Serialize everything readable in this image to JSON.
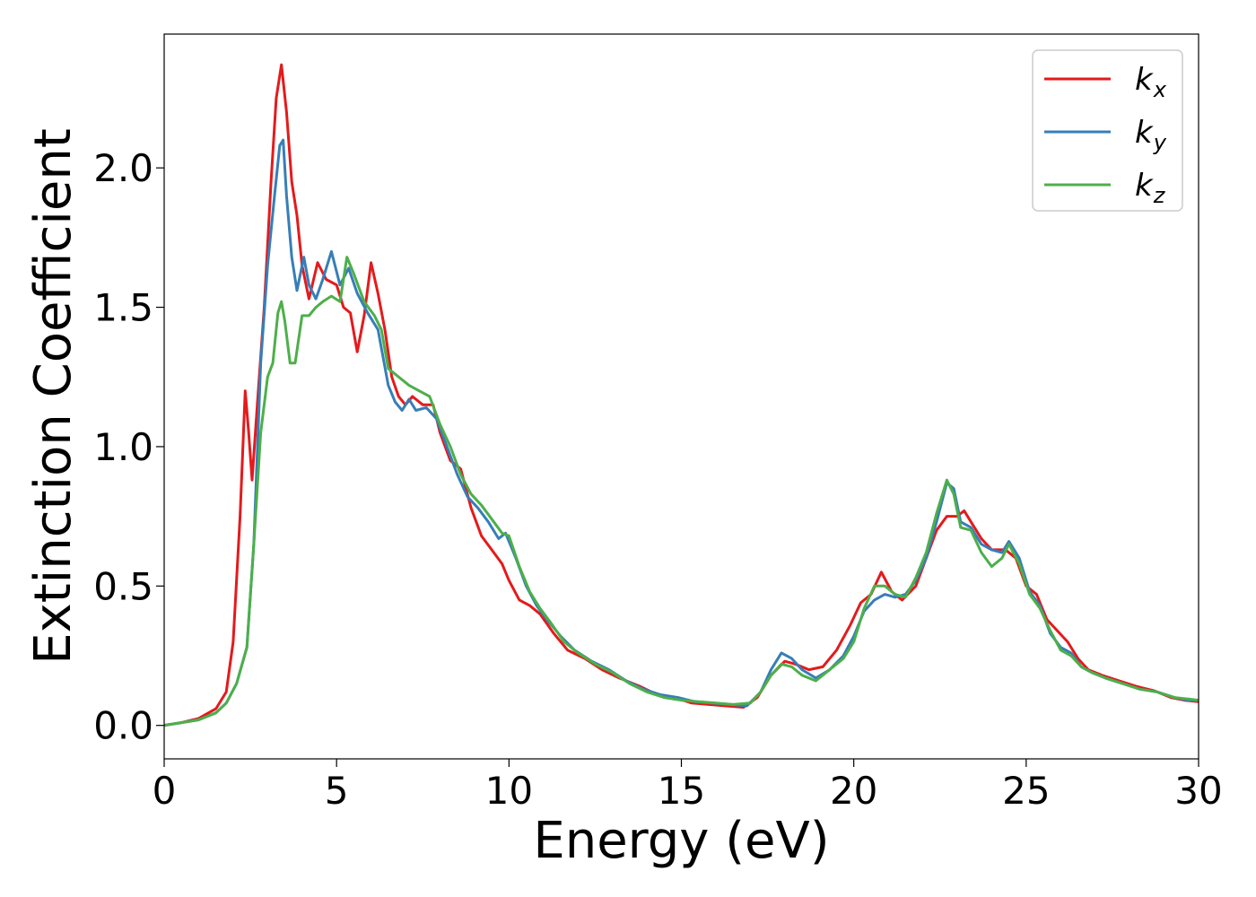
{
  "chart_data": {
    "type": "line",
    "title": "",
    "xlabel": "Energy (eV)",
    "ylabel": "Extinction Coefficient",
    "xlim": [
      0,
      30
    ],
    "ylim": [
      -0.12,
      2.48
    ],
    "xticks": [
      0,
      5,
      10,
      15,
      20,
      25,
      30
    ],
    "xtick_labels": [
      "0",
      "5",
      "10",
      "15",
      "20",
      "25",
      "30"
    ],
    "yticks": [
      0.0,
      0.5,
      1.0,
      1.5,
      2.0
    ],
    "ytick_labels": [
      "0.0",
      "0.5",
      "1.0",
      "1.5",
      "2.0"
    ],
    "grid": false,
    "legend_position": "top-right",
    "series": [
      {
        "name": "k",
        "subscript": "x",
        "color": "#e41a1c",
        "points": [
          [
            0,
            0
          ],
          [
            0.5,
            0.01
          ],
          [
            1,
            0.025
          ],
          [
            1.5,
            0.06
          ],
          [
            1.8,
            0.12
          ],
          [
            2.0,
            0.3
          ],
          [
            2.2,
            0.75
          ],
          [
            2.35,
            1.2
          ],
          [
            2.45,
            1.05
          ],
          [
            2.55,
            0.88
          ],
          [
            2.7,
            1.15
          ],
          [
            2.9,
            1.5
          ],
          [
            3.1,
            1.95
          ],
          [
            3.25,
            2.25
          ],
          [
            3.4,
            2.37
          ],
          [
            3.55,
            2.2
          ],
          [
            3.7,
            1.95
          ],
          [
            3.85,
            1.83
          ],
          [
            4.0,
            1.65
          ],
          [
            4.2,
            1.53
          ],
          [
            4.45,
            1.66
          ],
          [
            4.7,
            1.6
          ],
          [
            5.0,
            1.58
          ],
          [
            5.2,
            1.5
          ],
          [
            5.4,
            1.48
          ],
          [
            5.6,
            1.34
          ],
          [
            5.8,
            1.47
          ],
          [
            6.0,
            1.66
          ],
          [
            6.2,
            1.55
          ],
          [
            6.4,
            1.42
          ],
          [
            6.6,
            1.25
          ],
          [
            6.8,
            1.18
          ],
          [
            7.0,
            1.15
          ],
          [
            7.2,
            1.18
          ],
          [
            7.5,
            1.15
          ],
          [
            7.8,
            1.15
          ],
          [
            8.0,
            1.05
          ],
          [
            8.3,
            0.95
          ],
          [
            8.6,
            0.92
          ],
          [
            8.9,
            0.78
          ],
          [
            9.2,
            0.68
          ],
          [
            9.5,
            0.63
          ],
          [
            9.8,
            0.58
          ],
          [
            10.0,
            0.52
          ],
          [
            10.3,
            0.45
          ],
          [
            10.6,
            0.43
          ],
          [
            10.9,
            0.4
          ],
          [
            11.3,
            0.33
          ],
          [
            11.7,
            0.27
          ],
          [
            12.2,
            0.24
          ],
          [
            12.7,
            0.2
          ],
          [
            13.2,
            0.17
          ],
          [
            13.8,
            0.14
          ],
          [
            14.3,
            0.11
          ],
          [
            14.8,
            0.1
          ],
          [
            15.3,
            0.08
          ],
          [
            15.8,
            0.075
          ],
          [
            16.3,
            0.07
          ],
          [
            16.8,
            0.065
          ],
          [
            17.2,
            0.1
          ],
          [
            17.6,
            0.18
          ],
          [
            18.0,
            0.23
          ],
          [
            18.3,
            0.22
          ],
          [
            18.7,
            0.2
          ],
          [
            19.1,
            0.21
          ],
          [
            19.5,
            0.27
          ],
          [
            19.9,
            0.36
          ],
          [
            20.2,
            0.44
          ],
          [
            20.5,
            0.47
          ],
          [
            20.8,
            0.55
          ],
          [
            21.1,
            0.48
          ],
          [
            21.4,
            0.45
          ],
          [
            21.8,
            0.5
          ],
          [
            22.1,
            0.6
          ],
          [
            22.4,
            0.7
          ],
          [
            22.7,
            0.75
          ],
          [
            23.0,
            0.75
          ],
          [
            23.2,
            0.77
          ],
          [
            23.4,
            0.73
          ],
          [
            23.7,
            0.67
          ],
          [
            24.0,
            0.63
          ],
          [
            24.4,
            0.63
          ],
          [
            24.7,
            0.6
          ],
          [
            25.0,
            0.5
          ],
          [
            25.3,
            0.47
          ],
          [
            25.6,
            0.38
          ],
          [
            25.9,
            0.34
          ],
          [
            26.2,
            0.3
          ],
          [
            26.5,
            0.24
          ],
          [
            26.8,
            0.2
          ],
          [
            27.2,
            0.18
          ],
          [
            27.7,
            0.16
          ],
          [
            28.2,
            0.14
          ],
          [
            28.7,
            0.125
          ],
          [
            29.2,
            0.1
          ],
          [
            29.6,
            0.09
          ],
          [
            30,
            0.085
          ]
        ]
      },
      {
        "name": "k",
        "subscript": "y",
        "color": "#377eb8",
        "points": [
          [
            0,
            0
          ],
          [
            0.5,
            0.01
          ],
          [
            1,
            0.02
          ],
          [
            1.5,
            0.045
          ],
          [
            1.8,
            0.08
          ],
          [
            2.1,
            0.15
          ],
          [
            2.4,
            0.28
          ],
          [
            2.6,
            0.65
          ],
          [
            2.8,
            1.3
          ],
          [
            3.0,
            1.65
          ],
          [
            3.2,
            1.9
          ],
          [
            3.35,
            2.08
          ],
          [
            3.45,
            2.1
          ],
          [
            3.55,
            1.9
          ],
          [
            3.7,
            1.68
          ],
          [
            3.85,
            1.56
          ],
          [
            4.05,
            1.68
          ],
          [
            4.2,
            1.58
          ],
          [
            4.4,
            1.53
          ],
          [
            4.6,
            1.6
          ],
          [
            4.85,
            1.7
          ],
          [
            5.1,
            1.58
          ],
          [
            5.35,
            1.64
          ],
          [
            5.6,
            1.55
          ],
          [
            5.9,
            1.48
          ],
          [
            6.2,
            1.42
          ],
          [
            6.5,
            1.22
          ],
          [
            6.7,
            1.16
          ],
          [
            6.9,
            1.13
          ],
          [
            7.1,
            1.17
          ],
          [
            7.3,
            1.13
          ],
          [
            7.6,
            1.14
          ],
          [
            7.9,
            1.1
          ],
          [
            8.2,
            1.0
          ],
          [
            8.5,
            0.9
          ],
          [
            8.8,
            0.82
          ],
          [
            9.1,
            0.78
          ],
          [
            9.4,
            0.73
          ],
          [
            9.7,
            0.67
          ],
          [
            9.9,
            0.69
          ],
          [
            10.2,
            0.6
          ],
          [
            10.5,
            0.5
          ],
          [
            10.8,
            0.43
          ],
          [
            11.1,
            0.38
          ],
          [
            11.5,
            0.32
          ],
          [
            11.9,
            0.27
          ],
          [
            12.4,
            0.23
          ],
          [
            12.9,
            0.2
          ],
          [
            13.4,
            0.16
          ],
          [
            13.9,
            0.13
          ],
          [
            14.4,
            0.11
          ],
          [
            14.9,
            0.1
          ],
          [
            15.4,
            0.085
          ],
          [
            15.9,
            0.08
          ],
          [
            16.4,
            0.075
          ],
          [
            16.9,
            0.07
          ],
          [
            17.3,
            0.12
          ],
          [
            17.6,
            0.2
          ],
          [
            17.9,
            0.26
          ],
          [
            18.2,
            0.24
          ],
          [
            18.5,
            0.2
          ],
          [
            18.9,
            0.17
          ],
          [
            19.3,
            0.2
          ],
          [
            19.7,
            0.25
          ],
          [
            20.0,
            0.32
          ],
          [
            20.3,
            0.41
          ],
          [
            20.6,
            0.45
          ],
          [
            20.9,
            0.47
          ],
          [
            21.2,
            0.46
          ],
          [
            21.5,
            0.47
          ],
          [
            21.8,
            0.52
          ],
          [
            22.1,
            0.6
          ],
          [
            22.4,
            0.73
          ],
          [
            22.7,
            0.87
          ],
          [
            22.9,
            0.85
          ],
          [
            23.1,
            0.73
          ],
          [
            23.4,
            0.71
          ],
          [
            23.7,
            0.65
          ],
          [
            24.0,
            0.63
          ],
          [
            24.3,
            0.62
          ],
          [
            24.5,
            0.66
          ],
          [
            24.8,
            0.6
          ],
          [
            25.1,
            0.48
          ],
          [
            25.4,
            0.43
          ],
          [
            25.7,
            0.33
          ],
          [
            26.0,
            0.28
          ],
          [
            26.3,
            0.26
          ],
          [
            26.6,
            0.21
          ],
          [
            26.9,
            0.19
          ],
          [
            27.3,
            0.17
          ],
          [
            27.8,
            0.15
          ],
          [
            28.3,
            0.13
          ],
          [
            28.8,
            0.12
          ],
          [
            29.3,
            0.1
          ],
          [
            29.7,
            0.09
          ],
          [
            30,
            0.09
          ]
        ]
      },
      {
        "name": "k",
        "subscript": "z",
        "color": "#4daf4a",
        "points": [
          [
            0,
            0
          ],
          [
            0.5,
            0.01
          ],
          [
            1,
            0.02
          ],
          [
            1.5,
            0.045
          ],
          [
            1.8,
            0.08
          ],
          [
            2.1,
            0.15
          ],
          [
            2.4,
            0.28
          ],
          [
            2.6,
            0.65
          ],
          [
            2.8,
            1.05
          ],
          [
            3.0,
            1.25
          ],
          [
            3.15,
            1.3
          ],
          [
            3.3,
            1.48
          ],
          [
            3.4,
            1.52
          ],
          [
            3.5,
            1.45
          ],
          [
            3.65,
            1.3
          ],
          [
            3.8,
            1.3
          ],
          [
            4.0,
            1.47
          ],
          [
            4.2,
            1.47
          ],
          [
            4.4,
            1.5
          ],
          [
            4.6,
            1.52
          ],
          [
            4.85,
            1.54
          ],
          [
            5.1,
            1.52
          ],
          [
            5.3,
            1.68
          ],
          [
            5.5,
            1.62
          ],
          [
            5.8,
            1.52
          ],
          [
            6.1,
            1.47
          ],
          [
            6.3,
            1.42
          ],
          [
            6.5,
            1.28
          ],
          [
            6.8,
            1.25
          ],
          [
            7.1,
            1.22
          ],
          [
            7.4,
            1.2
          ],
          [
            7.7,
            1.18
          ],
          [
            8.0,
            1.08
          ],
          [
            8.3,
            1.0
          ],
          [
            8.6,
            0.9
          ],
          [
            8.9,
            0.83
          ],
          [
            9.2,
            0.79
          ],
          [
            9.5,
            0.74
          ],
          [
            9.8,
            0.69
          ],
          [
            10.0,
            0.68
          ],
          [
            10.3,
            0.57
          ],
          [
            10.6,
            0.48
          ],
          [
            10.9,
            0.42
          ],
          [
            11.2,
            0.37
          ],
          [
            11.6,
            0.3
          ],
          [
            12.0,
            0.26
          ],
          [
            12.5,
            0.22
          ],
          [
            13.0,
            0.19
          ],
          [
            13.5,
            0.15
          ],
          [
            14.0,
            0.12
          ],
          [
            14.5,
            0.1
          ],
          [
            15.0,
            0.09
          ],
          [
            15.5,
            0.085
          ],
          [
            16.0,
            0.08
          ],
          [
            16.5,
            0.075
          ],
          [
            17.0,
            0.08
          ],
          [
            17.3,
            0.12
          ],
          [
            17.6,
            0.18
          ],
          [
            17.9,
            0.22
          ],
          [
            18.2,
            0.21
          ],
          [
            18.5,
            0.18
          ],
          [
            18.9,
            0.16
          ],
          [
            19.3,
            0.2
          ],
          [
            19.7,
            0.24
          ],
          [
            20.0,
            0.3
          ],
          [
            20.3,
            0.42
          ],
          [
            20.6,
            0.5
          ],
          [
            20.9,
            0.5
          ],
          [
            21.2,
            0.47
          ],
          [
            21.5,
            0.46
          ],
          [
            21.8,
            0.53
          ],
          [
            22.1,
            0.62
          ],
          [
            22.4,
            0.76
          ],
          [
            22.7,
            0.88
          ],
          [
            22.9,
            0.83
          ],
          [
            23.1,
            0.71
          ],
          [
            23.4,
            0.7
          ],
          [
            23.7,
            0.62
          ],
          [
            24.0,
            0.57
          ],
          [
            24.3,
            0.6
          ],
          [
            24.5,
            0.65
          ],
          [
            24.8,
            0.58
          ],
          [
            25.1,
            0.47
          ],
          [
            25.4,
            0.42
          ],
          [
            25.7,
            0.34
          ],
          [
            26.0,
            0.27
          ],
          [
            26.3,
            0.25
          ],
          [
            26.6,
            0.21
          ],
          [
            26.9,
            0.19
          ],
          [
            27.3,
            0.17
          ],
          [
            27.8,
            0.15
          ],
          [
            28.3,
            0.13
          ],
          [
            28.8,
            0.12
          ],
          [
            29.3,
            0.1
          ],
          [
            29.7,
            0.095
          ],
          [
            30,
            0.09
          ]
        ]
      }
    ]
  }
}
